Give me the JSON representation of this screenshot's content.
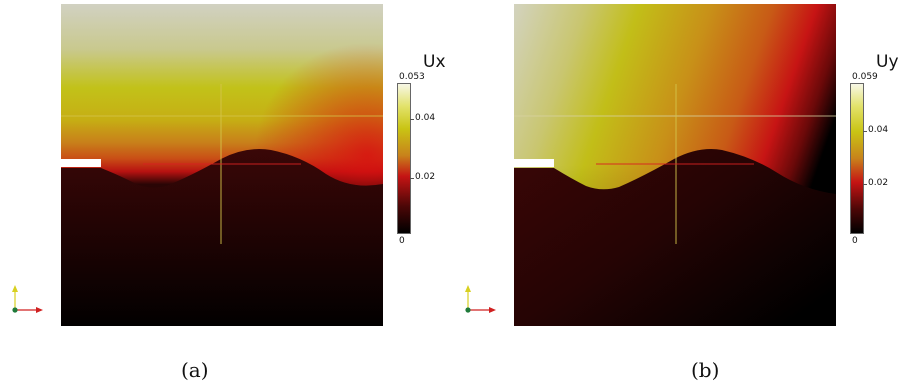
{
  "panels": [
    {
      "id": "a",
      "caption": "(a)",
      "colorbar": {
        "title": "Ux",
        "max_label": "0.053",
        "mid_labels": [
          "0.04",
          "0.02"
        ],
        "min_label": "0",
        "max": 0.053,
        "ticks": [
          0.04,
          0.02
        ]
      }
    },
    {
      "id": "b",
      "caption": "(b)",
      "colorbar": {
        "title": "Uy",
        "max_label": "0.059",
        "mid_labels": [
          "0.04",
          "0.02"
        ],
        "min_label": "0",
        "max": 0.059,
        "ticks": [
          0.04,
          0.02
        ]
      }
    }
  ],
  "colormap": "black-body (black-red-yellow-white)",
  "colors": {
    "black": "#000000",
    "dark_red": "#2a0505",
    "red": "#c41313",
    "orange": "#c8741a",
    "yellow": "#c4c41a",
    "pale": "#ececda"
  }
}
